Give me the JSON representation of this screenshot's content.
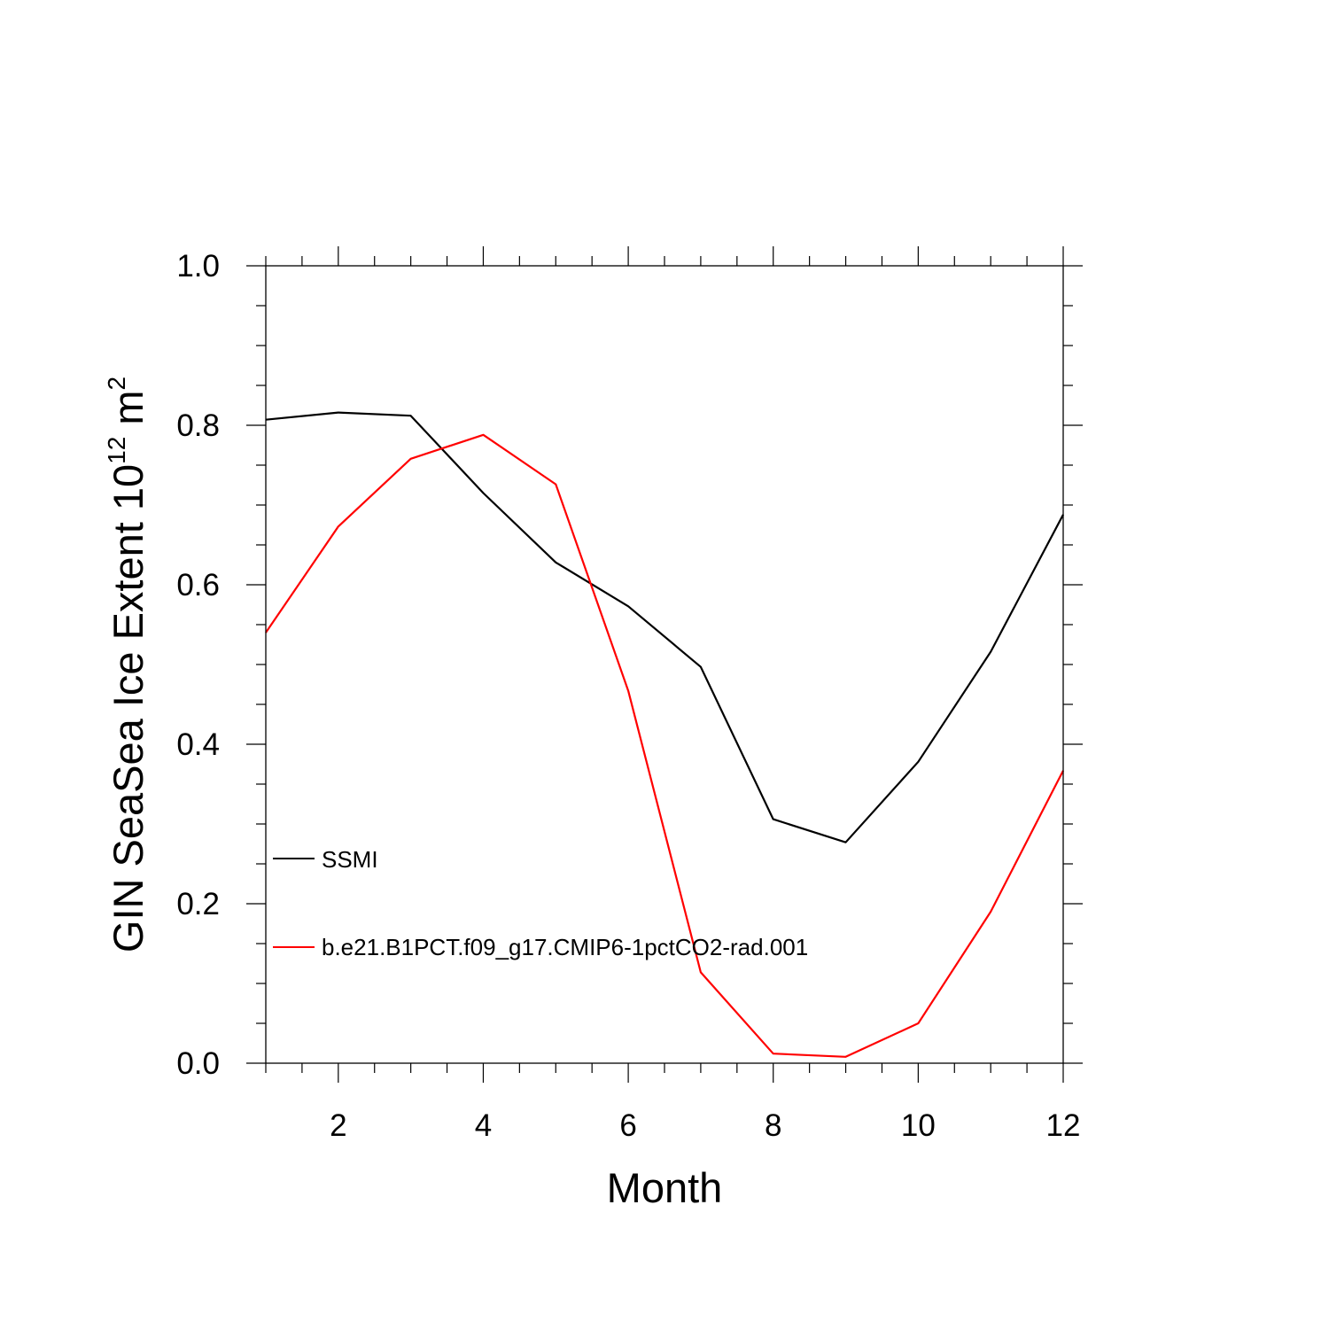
{
  "chart_data": {
    "type": "line",
    "xlabel": "Month",
    "ylabel": {
      "prefix": "GIN SeaSea Ice Extent 10",
      "exp1": "12",
      "mid": " m",
      "exp2": "2"
    },
    "xlim": [
      1,
      12
    ],
    "ylim": [
      0,
      1
    ],
    "xticks": [
      2,
      4,
      6,
      8,
      10,
      12
    ],
    "xtick_labels": [
      "2",
      "4",
      "6",
      "8",
      "10",
      "12"
    ],
    "yticks": [
      0,
      0.2,
      0.4,
      0.6,
      0.8,
      1.0
    ],
    "ytick_labels": [
      "0.0",
      "0.2",
      "0.4",
      "0.6",
      "0.8",
      "1.0"
    ],
    "grid": false,
    "legend_position": "lower-left",
    "x": [
      1,
      2,
      3,
      4,
      5,
      6,
      7,
      8,
      9,
      10,
      11,
      12
    ],
    "series": [
      {
        "name": "SSMI",
        "color": "#000000",
        "values": [
          0.807,
          0.816,
          0.812,
          0.715,
          0.628,
          0.573,
          0.497,
          0.306,
          0.277,
          0.378,
          0.516,
          0.688
        ]
      },
      {
        "name": "b.e21.B1PCT.f09_g17.CMIP6-1pctCO2-rad.001",
        "color": "#ff0000",
        "values": [
          0.54,
          0.673,
          0.758,
          0.788,
          0.726,
          0.467,
          0.114,
          0.012,
          0.008,
          0.05,
          0.19,
          0.367
        ]
      }
    ]
  }
}
